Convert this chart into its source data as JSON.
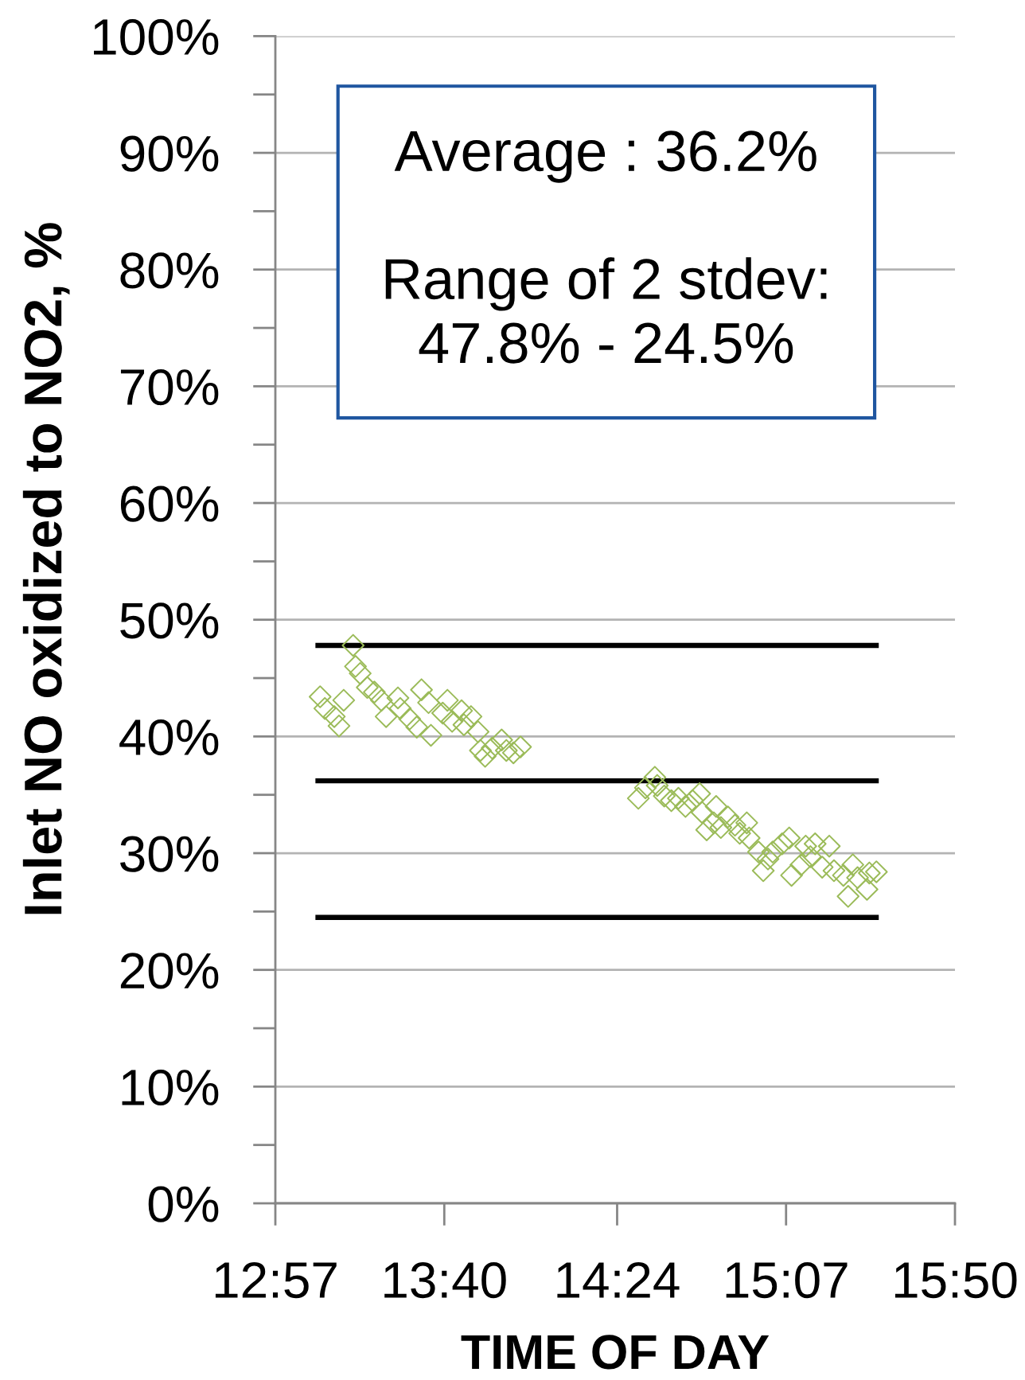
{
  "chart_data": {
    "type": "scatter",
    "xlabel": "TIME OF DAY",
    "ylabel": "Inlet NO oxidized to NO2, %",
    "xlim": [
      12.95,
      15.8333
    ],
    "xticks": [
      {
        "value": 12.95,
        "label": "12:57"
      },
      {
        "value": 13.6667,
        "label": "13:40"
      },
      {
        "value": 14.4,
        "label": "14:24"
      },
      {
        "value": 15.1167,
        "label": "15:07"
      },
      {
        "value": 15.8333,
        "label": "15:50"
      }
    ],
    "ylim": [
      0,
      100
    ],
    "yticks": [
      {
        "value": 0,
        "label": "0%"
      },
      {
        "value": 5,
        "label": null
      },
      {
        "value": 10,
        "label": "10%"
      },
      {
        "value": 15,
        "label": null
      },
      {
        "value": 20,
        "label": "20%"
      },
      {
        "value": 25,
        "label": null
      },
      {
        "value": 30,
        "label": "30%"
      },
      {
        "value": 35,
        "label": null
      },
      {
        "value": 40,
        "label": "40%"
      },
      {
        "value": 45,
        "label": null
      },
      {
        "value": 50,
        "label": "50%"
      },
      {
        "value": 55,
        "label": null
      },
      {
        "value": 60,
        "label": "60%"
      },
      {
        "value": 65,
        "label": null
      },
      {
        "value": 70,
        "label": "70%"
      },
      {
        "value": 75,
        "label": null
      },
      {
        "value": 80,
        "label": "80%"
      },
      {
        "value": 85,
        "label": null
      },
      {
        "value": 90,
        "label": "90%"
      },
      {
        "value": 95,
        "label": null
      },
      {
        "value": 100,
        "label": "100%"
      }
    ],
    "grid": "y",
    "annotations": [
      "Average : 36.2%\n\nRange of 2 stdev:\n47.8% - 24.5%"
    ],
    "series": [
      {
        "color": "#9bbb59",
        "marker": "diamond",
        "x": [
          13.14,
          13.16,
          13.2,
          13.22,
          13.24,
          13.28,
          13.29,
          13.31,
          13.34,
          13.37,
          13.4,
          13.42,
          13.47,
          13.48,
          13.52,
          13.55,
          13.57,
          13.6,
          13.61,
          13.66,
          13.68,
          13.7,
          13.74,
          13.75,
          13.78,
          13.81,
          13.82,
          13.84,
          13.87,
          13.91,
          13.93,
          13.96,
          13.99,
          14.49,
          14.52,
          14.56,
          14.57,
          14.6,
          14.63,
          14.66,
          14.69,
          14.72,
          14.75,
          14.76,
          14.78,
          14.81,
          14.82,
          14.84,
          14.87,
          14.9,
          14.92,
          14.95,
          14.96,
          15.0,
          15.02,
          15.04,
          15.06,
          15.1,
          15.13,
          15.14,
          15.18,
          15.2,
          15.22,
          15.24,
          15.27,
          15.3,
          15.32,
          15.36,
          15.38,
          15.4,
          15.42,
          15.46,
          15.47,
          15.5
        ],
        "values": [
          43.4,
          42.4,
          41.7,
          40.9,
          43.1,
          47.8,
          46.0,
          45.4,
          44.2,
          43.8,
          43.1,
          41.7,
          43.3,
          42.4,
          41.5,
          40.8,
          44.0,
          42.9,
          40.1,
          42.0,
          43.1,
          41.3,
          42.2,
          41.0,
          41.7,
          40.4,
          38.8,
          38.3,
          39.0,
          39.7,
          38.8,
          38.6,
          39.1,
          34.7,
          35.6,
          36.5,
          35.8,
          34.9,
          34.5,
          34.7,
          34.0,
          34.5,
          35.1,
          33.5,
          32.0,
          32.6,
          34.0,
          32.2,
          33.1,
          32.4,
          31.7,
          32.6,
          31.3,
          30.1,
          28.5,
          29.5,
          30.1,
          30.8,
          31.3,
          28.1,
          29.0,
          30.6,
          29.7,
          30.8,
          28.8,
          30.6,
          28.5,
          28.1,
          26.3,
          29.0,
          27.9,
          26.9,
          28.3,
          28.4
        ]
      },
      {
        "type": "line",
        "color": "#000000",
        "marker": "none",
        "line_style": "solid",
        "x": [
          13.12,
          15.51
        ],
        "values": [
          47.8,
          47.8
        ]
      },
      {
        "type": "line",
        "color": "#000000",
        "marker": "none",
        "line_style": "solid",
        "x": [
          13.12,
          15.51
        ],
        "values": [
          36.2,
          36.2
        ]
      },
      {
        "type": "line",
        "color": "#000000",
        "marker": "none",
        "line_style": "solid",
        "x": [
          13.12,
          15.51
        ],
        "values": [
          24.5,
          24.5
        ]
      }
    ]
  }
}
